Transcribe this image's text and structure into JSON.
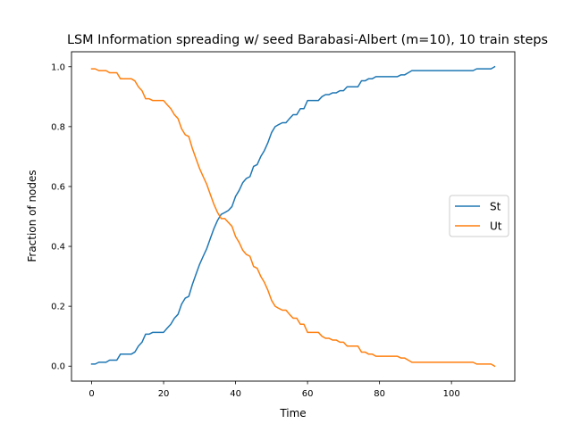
{
  "chart_data": {
    "type": "line",
    "title": "LSM Information spreading w/ seed Barabasi-Albert (m=10), 10 train steps",
    "xlabel": "Time",
    "ylabel": "Fraction of nodes",
    "xlim": [
      -5.6,
      117.6
    ],
    "ylim": [
      -0.05,
      1.05
    ],
    "xticks": [
      0,
      20,
      40,
      60,
      80,
      100
    ],
    "yticks": [
      0.0,
      0.2,
      0.4,
      0.6,
      0.8,
      1.0
    ],
    "xtick_labels": [
      "0",
      "20",
      "40",
      "60",
      "80",
      "100"
    ],
    "ytick_labels": [
      "0.0",
      "0.2",
      "0.4",
      "0.6",
      "0.8",
      "1.0"
    ],
    "grid": false,
    "legend_position": "center-right",
    "series": [
      {
        "name": "St",
        "color": "#1f77b4",
        "points": [
          [
            0,
            0.007
          ],
          [
            1,
            0.007
          ],
          [
            2,
            0.013
          ],
          [
            3,
            0.013
          ],
          [
            4,
            0.013
          ],
          [
            5,
            0.02
          ],
          [
            6,
            0.02
          ],
          [
            7,
            0.02
          ],
          [
            8,
            0.04
          ],
          [
            9,
            0.04
          ],
          [
            10,
            0.04
          ],
          [
            11,
            0.04
          ],
          [
            12,
            0.047
          ],
          [
            13,
            0.067
          ],
          [
            14,
            0.08
          ],
          [
            15,
            0.107
          ],
          [
            16,
            0.107
          ],
          [
            17,
            0.113
          ],
          [
            18,
            0.113
          ],
          [
            19,
            0.113
          ],
          [
            20,
            0.113
          ],
          [
            21,
            0.127
          ],
          [
            22,
            0.14
          ],
          [
            23,
            0.16
          ],
          [
            24,
            0.173
          ],
          [
            25,
            0.207
          ],
          [
            26,
            0.227
          ],
          [
            27,
            0.233
          ],
          [
            28,
            0.273
          ],
          [
            29,
            0.307
          ],
          [
            30,
            0.34
          ],
          [
            31,
            0.367
          ],
          [
            32,
            0.393
          ],
          [
            33,
            0.427
          ],
          [
            34,
            0.46
          ],
          [
            35,
            0.487
          ],
          [
            36,
            0.507
          ],
          [
            37,
            0.513
          ],
          [
            38,
            0.52
          ],
          [
            39,
            0.533
          ],
          [
            40,
            0.567
          ],
          [
            41,
            0.587
          ],
          [
            42,
            0.613
          ],
          [
            43,
            0.627
          ],
          [
            44,
            0.633
          ],
          [
            45,
            0.667
          ],
          [
            46,
            0.673
          ],
          [
            47,
            0.7
          ],
          [
            48,
            0.72
          ],
          [
            49,
            0.747
          ],
          [
            50,
            0.78
          ],
          [
            51,
            0.8
          ],
          [
            52,
            0.807
          ],
          [
            53,
            0.813
          ],
          [
            54,
            0.813
          ],
          [
            55,
            0.827
          ],
          [
            56,
            0.84
          ],
          [
            57,
            0.84
          ],
          [
            58,
            0.86
          ],
          [
            59,
            0.86
          ],
          [
            60,
            0.887
          ],
          [
            61,
            0.887
          ],
          [
            62,
            0.887
          ],
          [
            63,
            0.887
          ],
          [
            64,
            0.9
          ],
          [
            65,
            0.907
          ],
          [
            66,
            0.907
          ],
          [
            67,
            0.913
          ],
          [
            68,
            0.913
          ],
          [
            69,
            0.92
          ],
          [
            70,
            0.92
          ],
          [
            71,
            0.933
          ],
          [
            72,
            0.933
          ],
          [
            73,
            0.933
          ],
          [
            74,
            0.933
          ],
          [
            75,
            0.953
          ],
          [
            76,
            0.953
          ],
          [
            77,
            0.96
          ],
          [
            78,
            0.96
          ],
          [
            79,
            0.967
          ],
          [
            80,
            0.967
          ],
          [
            81,
            0.967
          ],
          [
            82,
            0.967
          ],
          [
            83,
            0.967
          ],
          [
            84,
            0.967
          ],
          [
            85,
            0.967
          ],
          [
            86,
            0.973
          ],
          [
            87,
            0.973
          ],
          [
            88,
            0.98
          ],
          [
            89,
            0.987
          ],
          [
            90,
            0.987
          ],
          [
            92,
            0.987
          ],
          [
            95,
            0.987
          ],
          [
            100,
            0.987
          ],
          [
            105,
            0.987
          ],
          [
            106,
            0.987
          ],
          [
            107,
            0.993
          ],
          [
            108,
            0.993
          ],
          [
            109,
            0.993
          ],
          [
            110,
            0.993
          ],
          [
            111,
            0.993
          ],
          [
            112,
            1.0
          ]
        ]
      },
      {
        "name": "Ut",
        "color": "#ff7f0e",
        "points": [
          [
            0,
            0.993
          ],
          [
            1,
            0.993
          ],
          [
            2,
            0.987
          ],
          [
            3,
            0.987
          ],
          [
            4,
            0.987
          ],
          [
            5,
            0.98
          ],
          [
            6,
            0.98
          ],
          [
            7,
            0.98
          ],
          [
            8,
            0.96
          ],
          [
            9,
            0.96
          ],
          [
            10,
            0.96
          ],
          [
            11,
            0.96
          ],
          [
            12,
            0.953
          ],
          [
            13,
            0.933
          ],
          [
            14,
            0.92
          ],
          [
            15,
            0.893
          ],
          [
            16,
            0.893
          ],
          [
            17,
            0.887
          ],
          [
            18,
            0.887
          ],
          [
            19,
            0.887
          ],
          [
            20,
            0.887
          ],
          [
            21,
            0.873
          ],
          [
            22,
            0.86
          ],
          [
            23,
            0.84
          ],
          [
            24,
            0.827
          ],
          [
            25,
            0.793
          ],
          [
            26,
            0.773
          ],
          [
            27,
            0.767
          ],
          [
            28,
            0.727
          ],
          [
            29,
            0.693
          ],
          [
            30,
            0.66
          ],
          [
            31,
            0.633
          ],
          [
            32,
            0.607
          ],
          [
            33,
            0.573
          ],
          [
            34,
            0.54
          ],
          [
            35,
            0.513
          ],
          [
            36,
            0.493
          ],
          [
            37,
            0.493
          ],
          [
            38,
            0.48
          ],
          [
            39,
            0.467
          ],
          [
            40,
            0.433
          ],
          [
            41,
            0.413
          ],
          [
            42,
            0.387
          ],
          [
            43,
            0.373
          ],
          [
            44,
            0.367
          ],
          [
            45,
            0.333
          ],
          [
            46,
            0.327
          ],
          [
            47,
            0.3
          ],
          [
            48,
            0.28
          ],
          [
            49,
            0.253
          ],
          [
            50,
            0.22
          ],
          [
            51,
            0.2
          ],
          [
            52,
            0.193
          ],
          [
            53,
            0.187
          ],
          [
            54,
            0.187
          ],
          [
            55,
            0.173
          ],
          [
            56,
            0.16
          ],
          [
            57,
            0.16
          ],
          [
            58,
            0.14
          ],
          [
            59,
            0.14
          ],
          [
            60,
            0.113
          ],
          [
            61,
            0.113
          ],
          [
            62,
            0.113
          ],
          [
            63,
            0.113
          ],
          [
            64,
            0.1
          ],
          [
            65,
            0.093
          ],
          [
            66,
            0.093
          ],
          [
            67,
            0.087
          ],
          [
            68,
            0.087
          ],
          [
            69,
            0.08
          ],
          [
            70,
            0.08
          ],
          [
            71,
            0.067
          ],
          [
            72,
            0.067
          ],
          [
            73,
            0.067
          ],
          [
            74,
            0.067
          ],
          [
            75,
            0.047
          ],
          [
            76,
            0.047
          ],
          [
            77,
            0.04
          ],
          [
            78,
            0.04
          ],
          [
            79,
            0.033
          ],
          [
            80,
            0.033
          ],
          [
            81,
            0.033
          ],
          [
            82,
            0.033
          ],
          [
            83,
            0.033
          ],
          [
            84,
            0.033
          ],
          [
            85,
            0.033
          ],
          [
            86,
            0.027
          ],
          [
            87,
            0.027
          ],
          [
            88,
            0.02
          ],
          [
            89,
            0.013
          ],
          [
            90,
            0.013
          ],
          [
            92,
            0.013
          ],
          [
            95,
            0.013
          ],
          [
            100,
            0.013
          ],
          [
            105,
            0.013
          ],
          [
            106,
            0.013
          ],
          [
            107,
            0.007
          ],
          [
            108,
            0.007
          ],
          [
            109,
            0.007
          ],
          [
            110,
            0.007
          ],
          [
            111,
            0.007
          ],
          [
            112,
            0.0
          ]
        ]
      }
    ]
  }
}
